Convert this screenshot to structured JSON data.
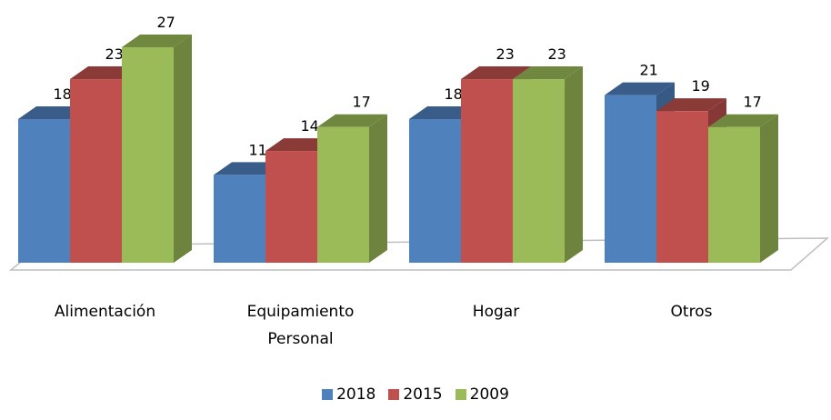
{
  "chart_data": {
    "type": "bar3d",
    "categories": [
      "Alimentación",
      "Equipamiento Personal",
      "Hogar",
      "Otros"
    ],
    "series": [
      {
        "name": "2018",
        "color": "#4f81bd",
        "values": [
          18,
          11,
          18,
          21
        ]
      },
      {
        "name": "2015",
        "color": "#c0504d",
        "values": [
          23,
          14,
          23,
          19
        ]
      },
      {
        "name": "2009",
        "color": "#9bbb59",
        "values": [
          27,
          17,
          23,
          17
        ]
      }
    ],
    "legend": "bottom"
  }
}
